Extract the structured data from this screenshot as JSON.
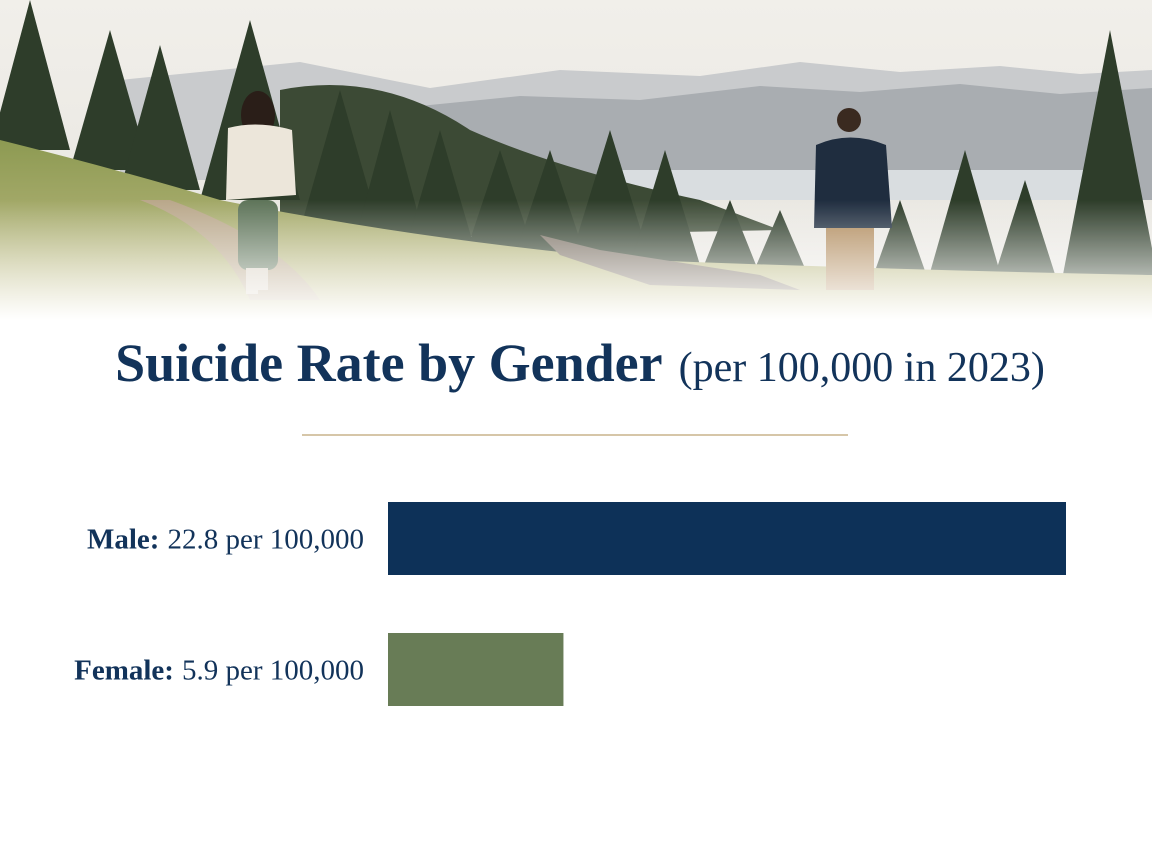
{
  "chart_data": {
    "type": "bar",
    "orientation": "horizontal",
    "title": "Suicide Rate by Gender",
    "subtitle": "(per 100,000 in 2023)",
    "categories": [
      "Male:",
      "Female:"
    ],
    "values": [
      22.8,
      5.9
    ],
    "value_labels": [
      "22.8 per 100,000",
      "5.9 per 100,000"
    ],
    "colors": [
      "#0d3158",
      "#687c56"
    ]
  }
}
